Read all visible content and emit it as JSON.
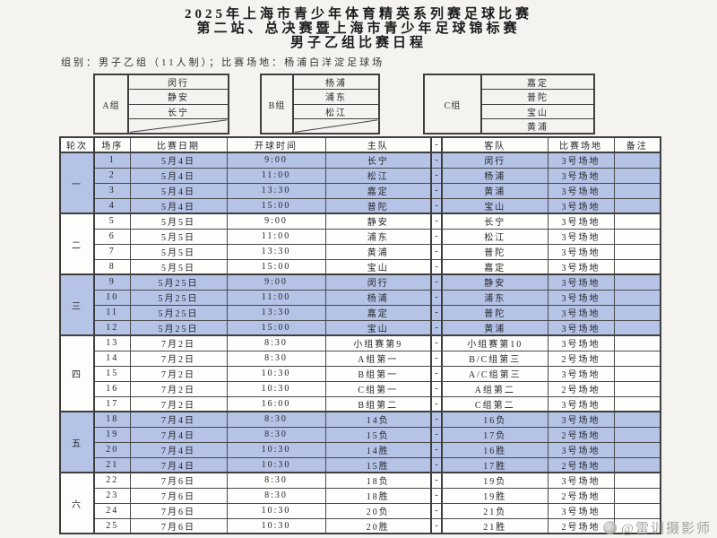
{
  "header": {
    "title_lines": [
      "2025年上海市青少年体育精英系列赛足球比赛",
      "第二站、总决赛暨上海市青少年足球锦标赛",
      "男子乙组比赛日程"
    ],
    "info_line": "组别：男子乙组（11人制）；比赛场地：杨浦白洋淀足球场"
  },
  "groups": [
    {
      "label": "A组",
      "teams": [
        "闵行",
        "静安",
        "长宁"
      ],
      "has_empty_slot": true
    },
    {
      "label": "B组",
      "teams": [
        "杨浦",
        "浦东",
        "松江"
      ],
      "has_empty_slot": true
    },
    {
      "label": "C组",
      "teams": [
        "嘉定",
        "普陀",
        "宝山",
        "黄浦"
      ],
      "has_empty_slot": false
    }
  ],
  "schedule": {
    "headers": [
      "轮次",
      "场序",
      "比赛日期",
      "开球时间",
      "主队",
      "-",
      "客队",
      "比赛场地",
      "备注"
    ],
    "rounds": [
      {
        "label": "一",
        "highlighted": true,
        "matches": [
          {
            "no": "1",
            "date": "5月4日",
            "time": "9:00",
            "home": "长宁",
            "vs": "-",
            "away": "闵行",
            "venue": "3号场地",
            "note": ""
          },
          {
            "no": "2",
            "date": "5月4日",
            "time": "11:00",
            "home": "松江",
            "vs": "-",
            "away": "杨浦",
            "venue": "3号场地",
            "note": ""
          },
          {
            "no": "3",
            "date": "5月4日",
            "time": "13:30",
            "home": "嘉定",
            "vs": "-",
            "away": "黄浦",
            "venue": "3号场地",
            "note": ""
          },
          {
            "no": "4",
            "date": "5月4日",
            "time": "15:00",
            "home": "普陀",
            "vs": "-",
            "away": "宝山",
            "venue": "3号场地",
            "note": ""
          }
        ]
      },
      {
        "label": "二",
        "highlighted": false,
        "matches": [
          {
            "no": "5",
            "date": "5月5日",
            "time": "9:00",
            "home": "静安",
            "vs": "-",
            "away": "长宁",
            "venue": "3号场地",
            "note": ""
          },
          {
            "no": "6",
            "date": "5月5日",
            "time": "11:00",
            "home": "浦东",
            "vs": "-",
            "away": "松江",
            "venue": "3号场地",
            "note": ""
          },
          {
            "no": "7",
            "date": "5月5日",
            "time": "13:30",
            "home": "黄浦",
            "vs": "-",
            "away": "普陀",
            "venue": "3号场地",
            "note": ""
          },
          {
            "no": "8",
            "date": "5月5日",
            "time": "15:00",
            "home": "宝山",
            "vs": "-",
            "away": "嘉定",
            "venue": "3号场地",
            "note": ""
          }
        ]
      },
      {
        "label": "三",
        "highlighted": true,
        "matches": [
          {
            "no": "9",
            "date": "5月25日",
            "time": "9:00",
            "home": "闵行",
            "vs": "-",
            "away": "静安",
            "venue": "3号场地",
            "note": ""
          },
          {
            "no": "10",
            "date": "5月25日",
            "time": "11:00",
            "home": "杨浦",
            "vs": "-",
            "away": "浦东",
            "venue": "3号场地",
            "note": ""
          },
          {
            "no": "11",
            "date": "5月25日",
            "time": "13:30",
            "home": "嘉定",
            "vs": "-",
            "away": "普陀",
            "venue": "3号场地",
            "note": ""
          },
          {
            "no": "12",
            "date": "5月25日",
            "time": "15:00",
            "home": "宝山",
            "vs": "-",
            "away": "黄浦",
            "venue": "3号场地",
            "note": ""
          }
        ]
      },
      {
        "label": "四",
        "highlighted": false,
        "matches": [
          {
            "no": "13",
            "date": "7月2日",
            "time": "8:30",
            "home": "小组赛第9",
            "vs": "-",
            "away": "小组赛第10",
            "venue": "3号场地",
            "note": ""
          },
          {
            "no": "14",
            "date": "7月2日",
            "time": "8:30",
            "home": "A组第一",
            "vs": "-",
            "away": "B/C组第三",
            "venue": "2号场地",
            "note": ""
          },
          {
            "no": "15",
            "date": "7月2日",
            "time": "10:30",
            "home": "B组第一",
            "vs": "-",
            "away": "A/C组第三",
            "venue": "3号场地",
            "note": ""
          },
          {
            "no": "16",
            "date": "7月2日",
            "time": "10:30",
            "home": "C组第一",
            "vs": "-",
            "away": "A组第二",
            "venue": "2号场地",
            "note": ""
          },
          {
            "no": "17",
            "date": "7月2日",
            "time": "16:00",
            "home": "B组第二",
            "vs": "-",
            "away": "C组第二",
            "venue": "3号场地",
            "note": ""
          }
        ]
      },
      {
        "label": "五",
        "highlighted": true,
        "matches": [
          {
            "no": "18",
            "date": "7月4日",
            "time": "8:30",
            "home": "14负",
            "vs": "-",
            "away": "16负",
            "venue": "3号场地",
            "note": ""
          },
          {
            "no": "19",
            "date": "7月4日",
            "time": "8:30",
            "home": "15负",
            "vs": "-",
            "away": "17负",
            "venue": "2号场地",
            "note": ""
          },
          {
            "no": "20",
            "date": "7月4日",
            "time": "10:30",
            "home": "14胜",
            "vs": "-",
            "away": "16胜",
            "venue": "3号场地",
            "note": ""
          },
          {
            "no": "21",
            "date": "7月4日",
            "time": "10:30",
            "home": "15胜",
            "vs": "-",
            "away": "17胜",
            "venue": "2号场地",
            "note": ""
          }
        ]
      },
      {
        "label": "六",
        "highlighted": false,
        "matches": [
          {
            "no": "22",
            "date": "7月6日",
            "time": "8:30",
            "home": "18负",
            "vs": "-",
            "away": "19负",
            "venue": "3号场地",
            "note": ""
          },
          {
            "no": "23",
            "date": "7月6日",
            "time": "8:30",
            "home": "18胜",
            "vs": "-",
            "away": "19胜",
            "venue": "2号场地",
            "note": ""
          },
          {
            "no": "24",
            "date": "7月6日",
            "time": "10:30",
            "home": "20负",
            "vs": "-",
            "away": "21负",
            "venue": "3号场地",
            "note": ""
          },
          {
            "no": "25",
            "date": "7月6日",
            "time": "10:30",
            "home": "20胜",
            "vs": "-",
            "away": "21胜",
            "venue": "2号场地",
            "note": ""
          }
        ]
      }
    ]
  },
  "watermark": {
    "text": "@雷训摄影师"
  },
  "colors": {
    "highlight_row": "#b4c3e6",
    "border": "#3f3f3f",
    "paper": "#f4f3f0",
    "watermark_gray": "#9b9b98"
  }
}
